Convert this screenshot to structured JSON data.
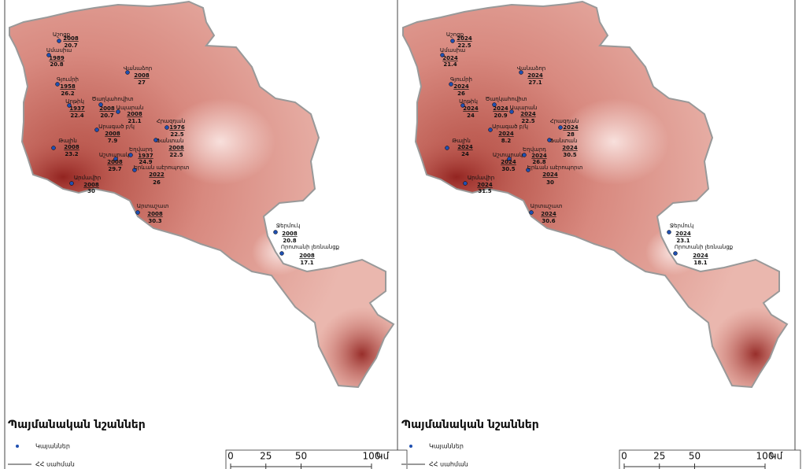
{
  "panels": [
    {
      "stations": [
        {
          "name": "Աշոցք",
          "year": "2008",
          "value": 20.7
        },
        {
          "name": "Ամասիա",
          "year": "1989",
          "value": 20.8
        },
        {
          "name": "Վանաձոր",
          "year": "2008",
          "value": 27
        },
        {
          "name": "Գյումրի",
          "year": "1958",
          "value": 26.2
        },
        {
          "name": "Արթիկ",
          "year": "1937",
          "value": 22.4
        },
        {
          "name": "Ծաղկահովիտ",
          "year": "2008",
          "value": 20.7
        },
        {
          "name": "Ապարան",
          "year": "2008",
          "value": 21.1
        },
        {
          "name": "Հրազդան",
          "year": "1976",
          "value": 22.5
        },
        {
          "name": "Արագած բ/կ",
          "year": "2008",
          "value": 7.9
        },
        {
          "name": "Թալին",
          "year": "2008",
          "value": 23.2
        },
        {
          "name": "Ֆանտան",
          "year": "2008",
          "value": 22.5
        },
        {
          "name": "Եղվարդ",
          "year": "1937",
          "value": 24.9
        },
        {
          "name": "Աշտարակ",
          "year": "2008",
          "value": 29.7
        },
        {
          "name": "Երևան աէրոպորտ",
          "year": "2022",
          "value": 26
        },
        {
          "name": "Արմավիր",
          "year": "2008",
          "value": 30
        },
        {
          "name": "Արտաշատ",
          "year": "2008",
          "value": 30.3
        },
        {
          "name": "Ջերմուկ",
          "year": "2008",
          "value": 20.8
        },
        {
          "name": "Որոտանի լեռնանցք",
          "year": "2008",
          "value": 17.1
        }
      ],
      "legend": {
        "title": "Պայմանական նշաններ",
        "items": [
          "Կայաններ",
          "ՀՀ սահման"
        ]
      },
      "scale": {
        "ticks": [
          0,
          25,
          50,
          100
        ],
        "unit": "Կմ"
      }
    },
    {
      "stations": [
        {
          "name": "Աշոցք",
          "year": "2024",
          "value": 22.5
        },
        {
          "name": "Ամասիա",
          "year": "2024",
          "value": 21.4
        },
        {
          "name": "Վանաձոր",
          "year": "2024",
          "value": 27.1
        },
        {
          "name": "Գյումրի",
          "year": "2024",
          "value": 26
        },
        {
          "name": "Արթիկ",
          "year": "2024",
          "value": 24
        },
        {
          "name": "Ծաղկահովիտ",
          "year": "2024",
          "value": 20.9
        },
        {
          "name": "Ապարան",
          "year": "2024",
          "value": 22.5
        },
        {
          "name": "Հրազդան",
          "year": "2024",
          "value": 28
        },
        {
          "name": "Արագած բ/կ",
          "year": "2024",
          "value": 8.2
        },
        {
          "name": "Թալին",
          "year": "2024",
          "value": 24
        },
        {
          "name": "Ֆանտան",
          "year": "2024",
          "value": 30.5
        },
        {
          "name": "Եղվարդ",
          "year": "2024",
          "value": 26.8
        },
        {
          "name": "Աշտարակ",
          "year": "2024",
          "value": 30.5
        },
        {
          "name": "Երևան աէրոպորտ",
          "year": "2024",
          "value": 30
        },
        {
          "name": "Արմավիր",
          "year": "2024",
          "value": 31.5
        },
        {
          "name": "Արտաշատ",
          "year": "2024",
          "value": 30.6
        },
        {
          "name": "Ջերմուկ",
          "year": "2024",
          "value": 23.1
        },
        {
          "name": "Որոտանի լեռնանցք",
          "year": "2024",
          "value": 18.1
        }
      ],
      "legend": {
        "title": "Պայմանական նշաններ",
        "items": [
          "Կայաններ",
          "ՀՀ սահման"
        ]
      },
      "scale": {
        "ticks": [
          0,
          25,
          50,
          100
        ],
        "unit": "Կմ"
      }
    }
  ]
}
